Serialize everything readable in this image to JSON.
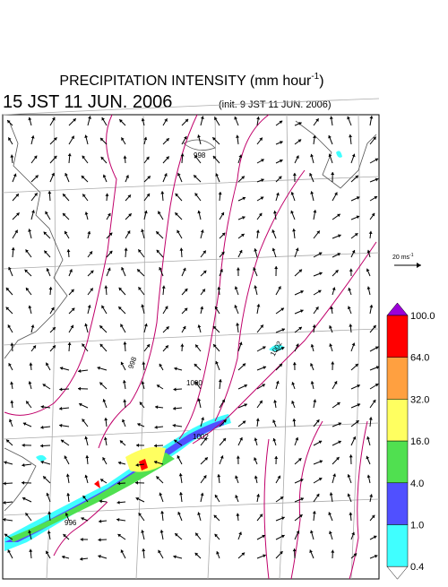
{
  "header": {
    "title": {
      "text": "PRECIPITATION INTENSITY (mm hour",
      "superscript": "-1",
      "suffix": ")"
    },
    "valid_time": "15 JST 11 JUN. 2006",
    "init_time": "(init. 9 JST 11 JUN. 2006)"
  },
  "wind_scale": {
    "text": "20 ms",
    "superscript": "-1"
  },
  "colorbar": {
    "labels": [
      "100.0",
      "64.0",
      "32.0",
      "16.0",
      "4.0",
      "1.0",
      "0.4"
    ],
    "colors": [
      "#9b00d8",
      "#ff0000",
      "#ffa040",
      "#ffff60",
      "#50e050",
      "#5050ff",
      "#40ffff",
      "#ffffff"
    ]
  },
  "contour_labels": [
    "998",
    "998",
    "1000",
    "1002",
    "1002",
    "996"
  ]
}
